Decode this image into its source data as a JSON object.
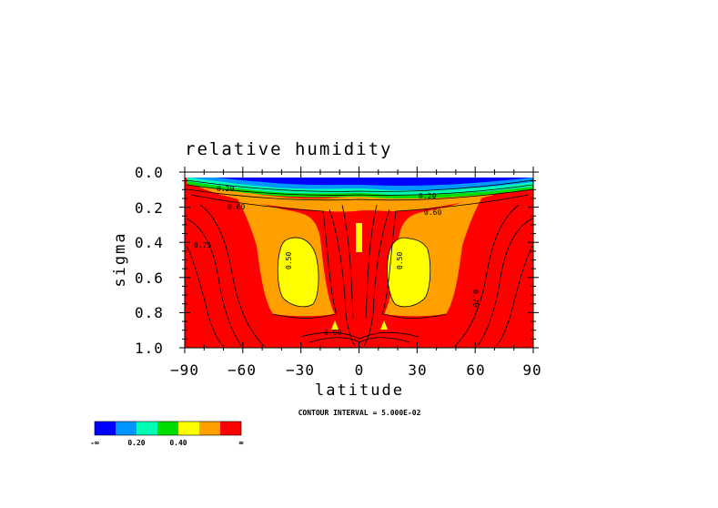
{
  "chart_data": {
    "type": "heatmap",
    "title": "relative humidity",
    "xlabel": "latitude",
    "ylabel": "sigma",
    "x_ticks": [
      "−90",
      "−60",
      "−30",
      "0",
      "30",
      "60",
      "90"
    ],
    "y_ticks": [
      "0.0",
      "0.2",
      "0.4",
      "0.6",
      "0.8",
      "1.0"
    ],
    "xlim": [
      -90,
      90
    ],
    "ylim": [
      1.0,
      0.0
    ],
    "contour_interval_text": "CONTOUR INTERVAL = 5.000E-02",
    "colorbar": {
      "colors": [
        "#0000ff",
        "#0096ff",
        "#00ffb4",
        "#00dc00",
        "#ffff00",
        "#ffa000",
        "#ff0000"
      ],
      "labels": [
        "-∞",
        "0.20",
        "0.40",
        "∞"
      ]
    },
    "contour_labels": [
      "0.20",
      "0.60",
      "0.20",
      "0.60",
      "0.75",
      "0.50",
      "0.50",
      "0.70",
      "0.90"
    ],
    "colors": {
      "low": "#0000ff",
      "mid_low": "#0096ff",
      "mid": "#00ffb4",
      "green": "#00dc00",
      "yellow": "#ffff00",
      "orange": "#ffa000",
      "high": "#ff0000"
    }
  }
}
